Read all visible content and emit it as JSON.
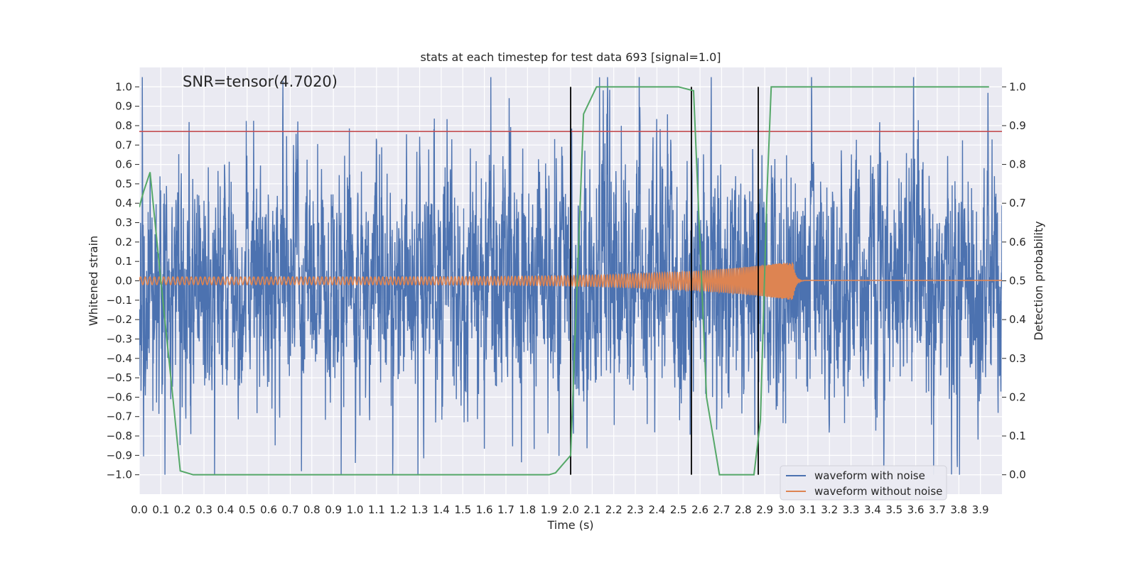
{
  "chart_data": {
    "type": "line",
    "title": "stats at each timestep for test data 693 [signal=1.0]",
    "xlabel": "Time (s)",
    "ylabel": "Whitened strain",
    "y2label": "Detection probability",
    "annotation": "SNR=tensor(4.7020)",
    "xlim": [
      0.0,
      4.0
    ],
    "ylim": [
      -1.1,
      1.1
    ],
    "y2lim": [
      -0.05,
      1.05
    ],
    "xticks": [
      "0.0",
      "0.1",
      "0.2",
      "0.3",
      "0.4",
      "0.5",
      "0.6",
      "0.7",
      "0.8",
      "0.9",
      "1.0",
      "1.1",
      "1.2",
      "1.3",
      "1.4",
      "1.5",
      "1.6",
      "1.7",
      "1.8",
      "1.9",
      "2.0",
      "2.1",
      "2.2",
      "2.3",
      "2.4",
      "2.5",
      "2.6",
      "2.7",
      "2.8",
      "2.9",
      "3.0",
      "3.1",
      "3.2",
      "3.3",
      "3.4",
      "3.5",
      "3.6",
      "3.7",
      "3.8",
      "3.9"
    ],
    "yticks": [
      "1.0",
      "0.9",
      "0.8",
      "0.7",
      "0.6",
      "0.5",
      "0.4",
      "0.3",
      "0.2",
      "0.1",
      "0.0",
      "−0.1",
      "−0.2",
      "−0.3",
      "−0.4",
      "−0.5",
      "−0.6",
      "−0.7",
      "−0.8",
      "−0.9",
      "−1.0"
    ],
    "y2ticks": [
      "1.0",
      "0.9",
      "0.8",
      "0.7",
      "0.6",
      "0.5",
      "0.4",
      "0.3",
      "0.2",
      "0.1",
      "0.0"
    ],
    "grid": true,
    "legend_position": "lower-right",
    "background": "#eaeaf2",
    "series": [
      {
        "name": "waveform with noise",
        "color": "#4c72b0",
        "axis": "left",
        "kind": "noise",
        "approx_amplitude": 0.35,
        "x_range": [
          0.0,
          4.0
        ]
      },
      {
        "name": "waveform without noise",
        "color": "#dd8452",
        "axis": "left",
        "kind": "chirp",
        "chirp_start_amplitude": 0.02,
        "chirp_peak_amplitude": 0.1,
        "merger_time": 3.03,
        "x_range": [
          0.0,
          4.0
        ]
      },
      {
        "color": "#55a868",
        "axis": "right",
        "kind": "probability",
        "x": [
          0.0,
          0.02,
          0.05,
          0.1,
          0.15,
          0.19,
          0.25,
          0.5,
          1.0,
          1.5,
          1.9,
          1.93,
          2.0,
          2.06,
          2.12,
          2.2,
          2.5,
          2.57,
          2.63,
          2.69,
          2.75,
          2.8,
          2.85,
          2.88,
          2.91,
          2.93,
          3.0,
          3.5,
          3.94
        ],
        "y": [
          0.69,
          0.73,
          0.78,
          0.5,
          0.23,
          0.01,
          0.0,
          0.0,
          0.0,
          0.0,
          0.0,
          0.005,
          0.05,
          0.93,
          1.0,
          1.0,
          1.0,
          0.99,
          0.2,
          0.0,
          0.0,
          0.0,
          0.0,
          0.14,
          0.72,
          1.0,
          1.0,
          1.0,
          1.0
        ]
      }
    ],
    "threshold": {
      "y": 0.77,
      "color": "#c44e52"
    },
    "vertical_lines": [
      2.0,
      2.56,
      2.87
    ],
    "vertical_line_color": "#000000"
  }
}
